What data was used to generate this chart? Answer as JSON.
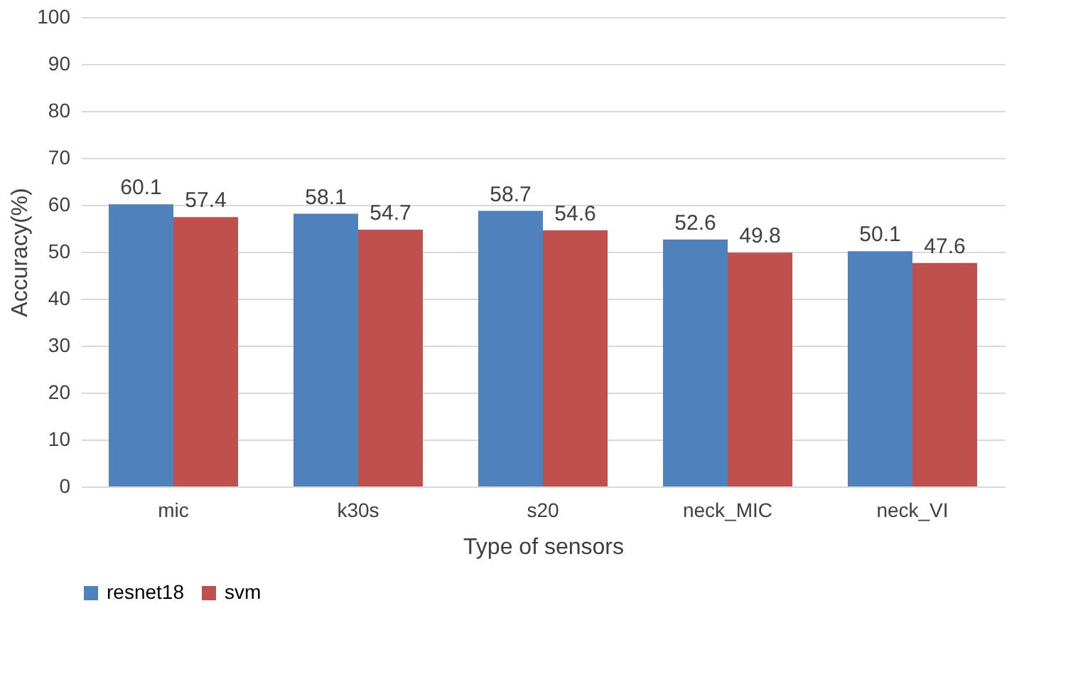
{
  "chart_data": {
    "type": "bar",
    "xlabel": "Type of sensors",
    "ylabel": "Accuracy(%)",
    "categories": [
      "mic",
      "k30s",
      "s20",
      "neck_MIC",
      "neck_VI"
    ],
    "series": [
      {
        "name": "resnet18",
        "color": "#4f81bd",
        "values": [
          60.1,
          58.1,
          58.7,
          52.6,
          50.1
        ]
      },
      {
        "name": "svm",
        "color": "#c0504d",
        "values": [
          57.4,
          54.7,
          54.6,
          49.8,
          47.6
        ]
      }
    ],
    "ylim": [
      0,
      100
    ],
    "yticks": [
      0,
      10,
      20,
      30,
      40,
      50,
      60,
      70,
      80,
      90,
      100
    ],
    "grid": "y",
    "legend": "bottom",
    "data_labels": true
  }
}
